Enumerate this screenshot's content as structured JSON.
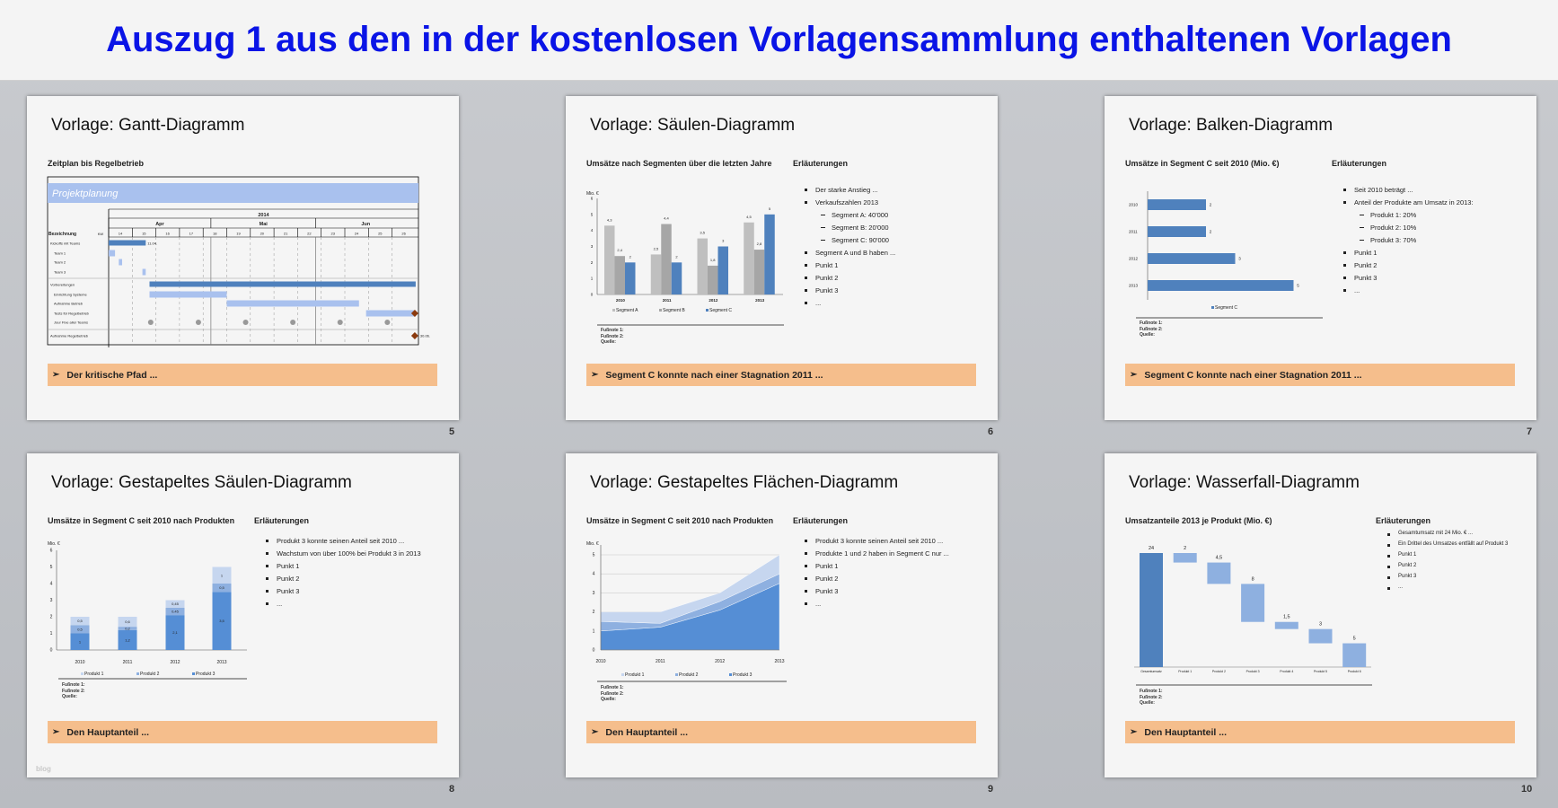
{
  "header": {
    "title": "Auszug 1 aus den in der kostenlosen Vorlagensammlung enthaltenen Vorlagen"
  },
  "slides": [
    {
      "page": "5",
      "title": "Vorlage: Gantt-Diagramm",
      "subtitle": "Zeitplan bis Regelbetrieb",
      "callout": "Der kritische Pfad ..."
    },
    {
      "page": "6",
      "title": "Vorlage: Säulen-Diagramm",
      "subtitle": "Umsätze nach Segmenten über die letzten Jahre",
      "notes_heading": "Erläuterungen",
      "bullets": [
        {
          "text": "Der starke Anstieg ...",
          "level": 1
        },
        {
          "text": "Verkaufszahlen  2013",
          "level": 1
        },
        {
          "text": "Segment A: 40'000",
          "level": 2
        },
        {
          "text": "Segment B: 20'000",
          "level": 2
        },
        {
          "text": "Segment C: 90'000",
          "level": 2
        },
        {
          "text": "Segment A und B haben ...",
          "level": 1
        },
        {
          "text": "Punkt 1",
          "level": 1
        },
        {
          "text": "Punkt 2",
          "level": 1
        },
        {
          "text": "Punkt 3",
          "level": 1
        },
        {
          "text": "...",
          "level": 1
        }
      ],
      "footnotes": [
        "Fußnote 1:",
        "Fußnote 2:",
        "Quelle:"
      ],
      "callout": "Segment C konnte nach einer Stagnation 2011 ..."
    },
    {
      "page": "7",
      "title": "Vorlage: Balken-Diagramm",
      "subtitle": "Umsätze in Segment C seit 2010 (Mio. €)",
      "notes_heading": "Erläuterungen",
      "bullets": [
        {
          "text": "Seit 2010 beträgt ...",
          "level": 1
        },
        {
          "text": "Anteil der Produkte am Umsatz in 2013:",
          "level": 1
        },
        {
          "text": "Produkt 1: 20%",
          "level": 2
        },
        {
          "text": "Produkt 2: 10%",
          "level": 2
        },
        {
          "text": "Produkt 3: 70%",
          "level": 2
        },
        {
          "text": "Punkt 1",
          "level": 1
        },
        {
          "text": "Punkt 2",
          "level": 1
        },
        {
          "text": "Punkt 3",
          "level": 1
        },
        {
          "text": "...",
          "level": 1
        }
      ],
      "footnotes": [
        "Fußnote 1:",
        "Fußnote 2:",
        "Quelle:"
      ],
      "callout": "Segment C konnte nach einer Stagnation 2011 ..."
    },
    {
      "page": "8",
      "title": "Vorlage: Gestapeltes Säulen-Diagramm",
      "subtitle": "Umsätze in Segment C seit 2010 nach Produkten",
      "notes_heading": "Erläuterungen",
      "bullets": [
        {
          "text": "Produkt 3 konnte  seinen Anteil seit 2010 ...",
          "level": 1
        },
        {
          "text": "Wachstum von über 100% bei Produkt 3 in 2013",
          "level": 1
        },
        {
          "text": "Punkt 1",
          "level": 1
        },
        {
          "text": "Punkt 2",
          "level": 1
        },
        {
          "text": "Punkt 3",
          "level": 1
        },
        {
          "text": "...",
          "level": 1
        }
      ],
      "footnotes": [
        "Fußnote 1:",
        "Fußnote 2:",
        "Quelle:"
      ],
      "callout": "Den Hauptanteil ...",
      "watermark": "blog"
    },
    {
      "page": "9",
      "title": "Vorlage: Gestapeltes Flächen-Diagramm",
      "subtitle": "Umsätze in Segment C seit 2010 nach Produkten",
      "notes_heading": "Erläuterungen",
      "bullets": [
        {
          "text": "Produkt 3 konnte  seinen Anteil seit 2010 ...",
          "level": 1
        },
        {
          "text": "Produkte 1 und 2 haben in Segment C nur ...",
          "level": 1
        },
        {
          "text": "Punkt 1",
          "level": 1
        },
        {
          "text": "Punkt 2",
          "level": 1
        },
        {
          "text": "Punkt 3",
          "level": 1
        },
        {
          "text": "...",
          "level": 1
        }
      ],
      "footnotes": [
        "Fußnote 1:",
        "Fußnote 2:",
        "Quelle:"
      ],
      "callout": "Den Hauptanteil ..."
    },
    {
      "page": "10",
      "title": "Vorlage: Wasserfall-Diagramm",
      "subtitle": "Umsatzanteile 2013 je Produkt (Mio. €)",
      "notes_heading": "Erläuterungen",
      "bullets": [
        {
          "text": "Gesamtumsatz mit 24 Mio. € ...",
          "level": 1
        },
        {
          "text": "Ein Drittel des Umsatzes entfällt auf Produkt 3",
          "level": 1
        },
        {
          "text": "Punkt 1",
          "level": 1
        },
        {
          "text": "Punkt 2",
          "level": 1
        },
        {
          "text": "Punkt 3",
          "level": 1
        },
        {
          "text": "...",
          "level": 1
        }
      ],
      "footnotes": [
        "Fußnote 1:",
        "Fußnote 2:",
        "Quelle:"
      ],
      "callout": "Den Hauptanteil ..."
    }
  ],
  "colors": {
    "dark_blue": "#4f81bd",
    "light_blue": "#a9c1ee",
    "gray_light": "#bfbfbf",
    "gray_mid": "#a6a6a6",
    "callout": "#f5be8c",
    "title_blue": "#0a14e6",
    "milestone": "#8b3a0e",
    "p1": "#c6d6ef",
    "p2": "#8eb0e0",
    "p3": "#558ed5"
  },
  "chart_data": [
    {
      "type": "gantt",
      "banner": "Projektplanung",
      "year": "2014",
      "column_header": "Bezeichnung",
      "week_label": "KW",
      "weeks": [
        "14",
        "15",
        "16",
        "17",
        "18",
        "19",
        "20",
        "21",
        "22",
        "23",
        "24",
        "25",
        "26"
      ],
      "months": [
        {
          "name": "Apr",
          "start": 14,
          "end": 18.33
        },
        {
          "name": "Mai",
          "start": 18.33,
          "end": 22.77
        },
        {
          "name": "Jun",
          "start": 22.77,
          "end": 27
        }
      ],
      "tasks": [
        {
          "name": "Kickoffs mit Teams",
          "start": 14,
          "end": 15.57,
          "style": "main",
          "label": "11.04."
        },
        {
          "name": "Team 1",
          "start": 14,
          "end": 14.27,
          "style": "sub"
        },
        {
          "name": "Team 2",
          "start": 14.43,
          "end": 14.57,
          "style": "sub"
        },
        {
          "name": "Team 3",
          "start": 15.43,
          "end": 15.57,
          "style": "sub"
        },
        {
          "name": "Vorbereitungen",
          "start": 15.73,
          "end": 27,
          "style": "main",
          "group_start": true
        },
        {
          "name": "Einrichtung Systeme",
          "start": 15.73,
          "end": 19,
          "style": "sub"
        },
        {
          "name": "Aufnahme Betrieb",
          "start": 19,
          "end": 24.6,
          "style": "sub"
        },
        {
          "name": "Tests für Regelbetrieb",
          "start": 24.9,
          "end": 27,
          "style": "sub",
          "milestone": 27
        },
        {
          "name": "Jour Fixe aller Teams",
          "style": "meetings",
          "meetings": [
            15.78,
            17.8,
            19.8,
            21.8,
            23.8,
            25.8
          ]
        },
        {
          "name": "Aufnahme Regelbetrieb",
          "style": "milestone",
          "milestone": 27,
          "label": "30.06.",
          "group_start": true
        }
      ]
    },
    {
      "type": "bar",
      "ylabel": "Mio. €",
      "ylim": [
        0,
        6
      ],
      "yticks": [
        0,
        1,
        2,
        3,
        4,
        5,
        6
      ],
      "categories": [
        "2010",
        "2011",
        "2012",
        "2013"
      ],
      "legend": "bottom",
      "series": [
        {
          "name": "Segment A",
          "values": [
            4.3,
            2.5,
            3.5,
            4.5
          ],
          "labels": [
            "4,3",
            "2,5",
            "3,5",
            "4,5"
          ],
          "color": "#bfbfbf"
        },
        {
          "name": "Segment B",
          "values": [
            2.4,
            4.4,
            1.8,
            2.8
          ],
          "labels": [
            "2,4",
            "4,4",
            "1,8",
            "2,8"
          ],
          "color": "#a6a6a6"
        },
        {
          "name": "Segment C",
          "values": [
            2,
            2,
            3,
            5
          ],
          "labels": [
            "2",
            "2",
            "3",
            "5"
          ],
          "color": "#4f81bd"
        }
      ]
    },
    {
      "type": "bar",
      "orientation": "horizontal",
      "categories": [
        "2010",
        "2011",
        "2012",
        "2013"
      ],
      "legend": "bottom",
      "series": [
        {
          "name": "Segment C",
          "values": [
            2,
            2,
            3,
            5
          ],
          "labels": [
            "2",
            "2",
            "3",
            "5"
          ],
          "color": "#4f81bd"
        }
      ]
    },
    {
      "type": "bar",
      "stacked": true,
      "ylabel": "Mio. €",
      "ylim": [
        0,
        6
      ],
      "yticks": [
        0,
        1,
        2,
        3,
        4,
        5,
        6
      ],
      "categories": [
        "2010",
        "2011",
        "2012",
        "2013"
      ],
      "legend": "bottom",
      "series": [
        {
          "name": "Produkt 1",
          "values": [
            0.5,
            0.6,
            0.45,
            1
          ],
          "labels": [
            "0,5",
            "0,6",
            "0,45",
            "1"
          ],
          "color": "#c6d6ef"
        },
        {
          "name": "Produkt 2",
          "values": [
            0.5,
            0.2,
            0.45,
            0.5
          ],
          "labels": [
            "0,5",
            "0,2",
            "0,45",
            "0,5"
          ],
          "color": "#8eb0e0"
        },
        {
          "name": "Produkt 3",
          "values": [
            1,
            1.2,
            2.1,
            3.5
          ],
          "labels": [
            "1",
            "1,2",
            "2,1",
            "3,5"
          ],
          "color": "#558ed5"
        }
      ]
    },
    {
      "type": "area",
      "stacked": true,
      "ylabel": "Mio. €",
      "ylim": [
        0,
        5
      ],
      "yticks": [
        0,
        1,
        2,
        3,
        4,
        5
      ],
      "grid": true,
      "categories": [
        "2010",
        "2011",
        "2012",
        "2013"
      ],
      "legend": "bottom",
      "series": [
        {
          "name": "Produkt 1",
          "values": [
            0.5,
            0.6,
            0.45,
            1
          ],
          "color": "#c6d6ef"
        },
        {
          "name": "Produkt 2",
          "values": [
            0.5,
            0.2,
            0.45,
            0.5
          ],
          "color": "#8eb0e0"
        },
        {
          "name": "Produkt 3",
          "values": [
            1,
            1.2,
            2.1,
            3.5
          ],
          "color": "#558ed5"
        }
      ]
    },
    {
      "type": "waterfall",
      "categories": [
        "Gesamtumsatz",
        "Produkt 1",
        "Produkt 2",
        "Produkt 3",
        "Produkt 4",
        "Produkt 5",
        "Produkt 6"
      ],
      "values": [
        24,
        2,
        4.5,
        8,
        1.5,
        3,
        5
      ],
      "labels": [
        "24",
        "2",
        "4,5",
        "8",
        "1,5",
        "3",
        "5"
      ]
    }
  ]
}
